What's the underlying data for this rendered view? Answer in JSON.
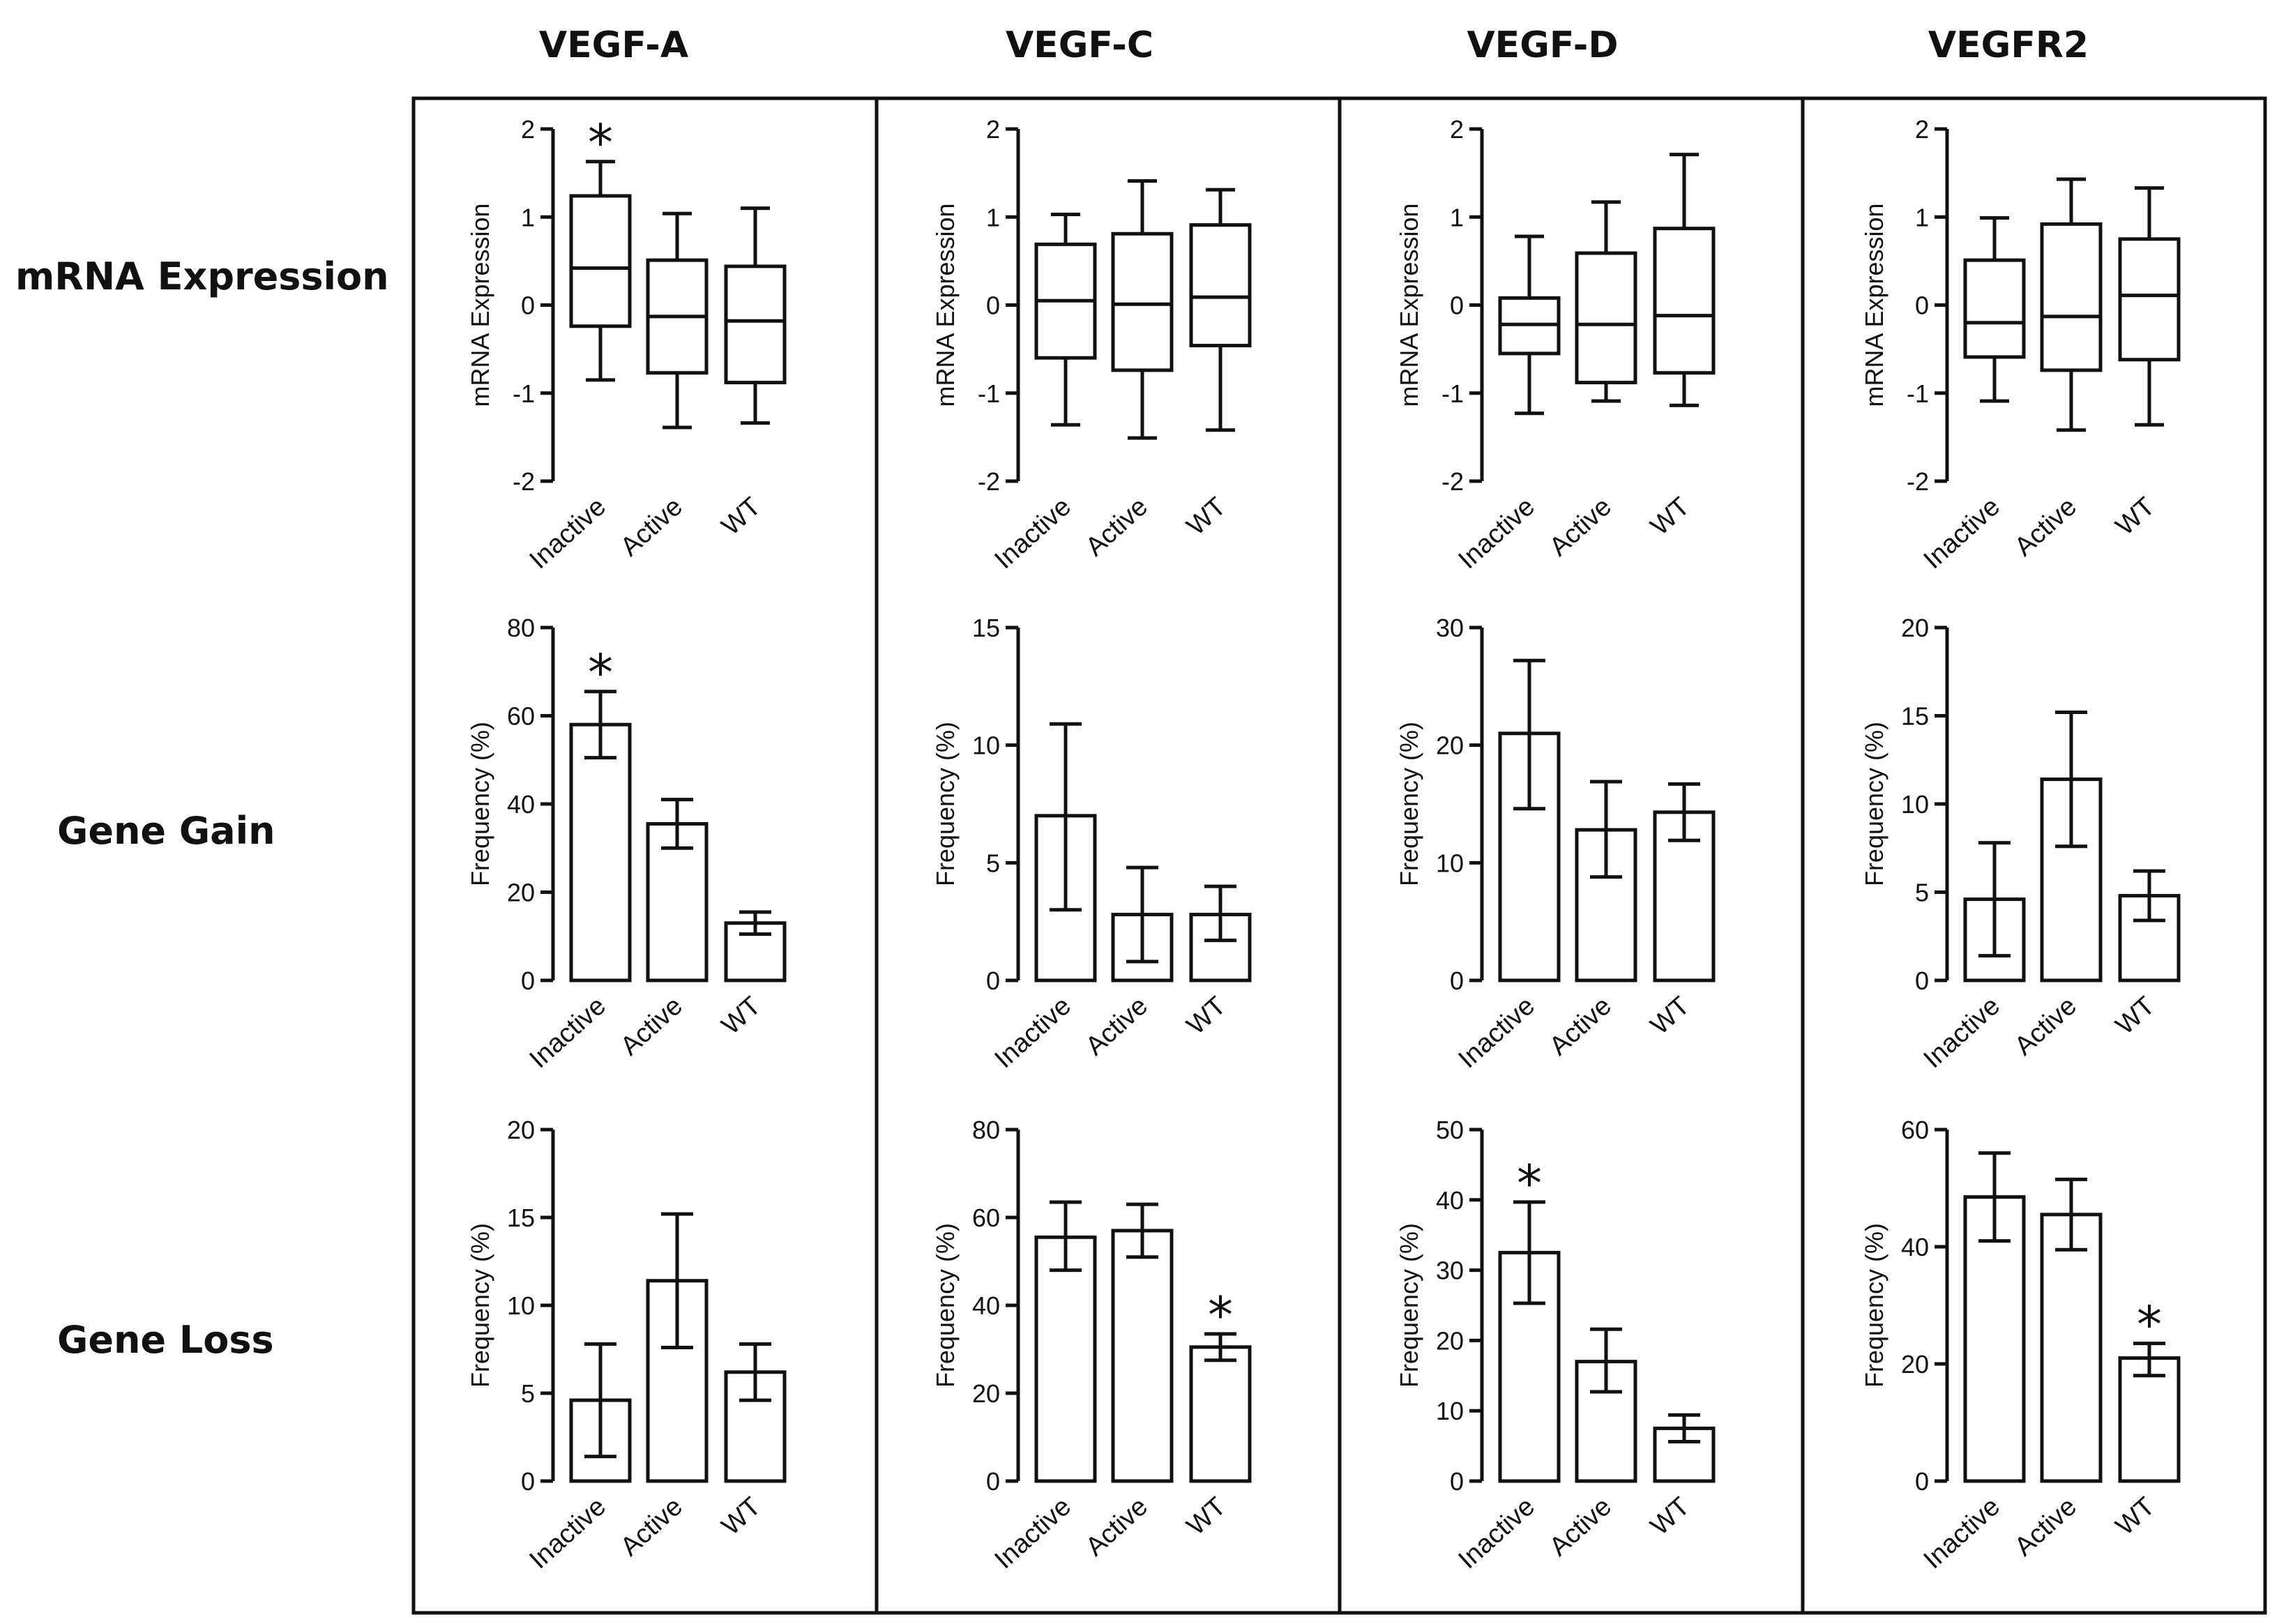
{
  "columns": [
    "VEGF-A",
    "VEGF-C",
    "VEGF-D",
    "VEGFR2"
  ],
  "rows": [
    "mRNA Expression",
    "Gene Gain",
    "Gene Loss"
  ],
  "chart_data": [
    {
      "type": "box",
      "gene": "VEGF-A",
      "row": "mRNA Expression",
      "categories": [
        "Inactive",
        "Active",
        "WT"
      ],
      "ylabel": "mRNA Expression",
      "ylim": [
        -2,
        2
      ],
      "yticks": [
        -2,
        -1,
        0,
        1,
        2
      ],
      "boxes": [
        {
          "min": -0.85,
          "q1": -0.24,
          "median": 0.42,
          "q3": 1.24,
          "max": 1.63
        },
        {
          "min": -1.39,
          "q1": -0.77,
          "median": -0.13,
          "q3": 0.51,
          "max": 1.04
        },
        {
          "min": -1.34,
          "q1": -0.88,
          "median": -0.18,
          "q3": 0.44,
          "max": 1.1
        }
      ],
      "significant": [
        true,
        false,
        false
      ],
      "sig_symbol": "*"
    },
    {
      "type": "box",
      "gene": "VEGF-C",
      "row": "mRNA Expression",
      "categories": [
        "Inactive",
        "Active",
        "WT"
      ],
      "ylabel": "mRNA Expression",
      "ylim": [
        -2,
        2
      ],
      "yticks": [
        -2,
        -1,
        0,
        1,
        2
      ],
      "boxes": [
        {
          "min": -1.36,
          "q1": -0.6,
          "median": 0.05,
          "q3": 0.69,
          "max": 1.03
        },
        {
          "min": -1.51,
          "q1": -0.74,
          "median": 0.01,
          "q3": 0.81,
          "max": 1.41
        },
        {
          "min": -1.42,
          "q1": -0.46,
          "median": 0.09,
          "q3": 0.91,
          "max": 1.31
        }
      ],
      "significant": [
        false,
        false,
        false
      ],
      "sig_symbol": "*"
    },
    {
      "type": "box",
      "gene": "VEGF-D",
      "row": "mRNA Expression",
      "categories": [
        "Inactive",
        "Active",
        "WT"
      ],
      "ylabel": "mRNA Expression",
      "ylim": [
        -2,
        2
      ],
      "yticks": [
        -2,
        -1,
        0,
        1,
        2
      ],
      "boxes": [
        {
          "min": -1.23,
          "q1": -0.55,
          "median": -0.22,
          "q3": 0.08,
          "max": 0.78
        },
        {
          "min": -1.09,
          "q1": -0.88,
          "median": -0.22,
          "q3": 0.59,
          "max": 1.17
        },
        {
          "min": -1.14,
          "q1": -0.77,
          "median": -0.12,
          "q3": 0.87,
          "max": 1.71
        }
      ],
      "significant": [
        false,
        false,
        false
      ],
      "sig_symbol": "*"
    },
    {
      "type": "box",
      "gene": "VEGFR2",
      "row": "mRNA Expression",
      "categories": [
        "Inactive",
        "Active",
        "WT"
      ],
      "ylabel": "mRNA Expression",
      "ylim": [
        -2,
        2
      ],
      "yticks": [
        -2,
        -1,
        0,
        1,
        2
      ],
      "boxes": [
        {
          "min": -1.09,
          "q1": -0.59,
          "median": -0.2,
          "q3": 0.51,
          "max": 0.99
        },
        {
          "min": -1.42,
          "q1": -0.74,
          "median": -0.13,
          "q3": 0.92,
          "max": 1.43
        },
        {
          "min": -1.36,
          "q1": -0.62,
          "median": 0.11,
          "q3": 0.75,
          "max": 1.33
        }
      ],
      "significant": [
        false,
        false,
        false
      ],
      "sig_symbol": "*"
    },
    {
      "type": "bar",
      "gene": "VEGF-A",
      "row": "Gene Gain",
      "categories": [
        "Inactive",
        "Active",
        "WT"
      ],
      "ylabel": "Frequency (%)",
      "ylim": [
        0,
        80
      ],
      "yticks": [
        0,
        20,
        40,
        60,
        80
      ],
      "values": [
        58,
        35.5,
        13
      ],
      "err_low": [
        50.5,
        30,
        10.5
      ],
      "err_high": [
        65.5,
        41,
        15.5
      ],
      "significant": [
        true,
        false,
        false
      ],
      "sig_symbol": "*"
    },
    {
      "type": "bar",
      "gene": "VEGF-C",
      "row": "Gene Gain",
      "categories": [
        "Inactive",
        "Active",
        "WT"
      ],
      "ylabel": "Frequency (%)",
      "ylim": [
        0,
        15
      ],
      "yticks": [
        0,
        5,
        10,
        15
      ],
      "values": [
        7,
        2.8,
        2.8
      ],
      "err_low": [
        3,
        0.8,
        1.7
      ],
      "err_high": [
        10.9,
        4.8,
        4
      ],
      "significant": [
        false,
        false,
        false
      ],
      "sig_symbol": "*"
    },
    {
      "type": "bar",
      "gene": "VEGF-D",
      "row": "Gene Gain",
      "categories": [
        "Inactive",
        "Active",
        "WT"
      ],
      "ylabel": "Frequency (%)",
      "ylim": [
        0,
        30
      ],
      "yticks": [
        0,
        10,
        20,
        30
      ],
      "values": [
        21,
        12.8,
        14.3
      ],
      "err_low": [
        14.6,
        8.8,
        11.9
      ],
      "err_high": [
        27.2,
        16.9,
        16.7
      ],
      "significant": [
        false,
        false,
        false
      ],
      "sig_symbol": "*"
    },
    {
      "type": "bar",
      "gene": "VEGFR2",
      "row": "Gene Gain",
      "categories": [
        "Inactive",
        "Active",
        "WT"
      ],
      "ylabel": "Frequency (%)",
      "ylim": [
        0,
        20
      ],
      "yticks": [
        0,
        5,
        10,
        15,
        20
      ],
      "values": [
        4.6,
        11.4,
        4.8
      ],
      "err_low": [
        1.4,
        7.6,
        3.4
      ],
      "err_high": [
        7.8,
        15.2,
        6.2
      ],
      "significant": [
        false,
        false,
        false
      ],
      "sig_symbol": "*"
    },
    {
      "type": "bar",
      "gene": "VEGF-A",
      "row": "Gene Loss",
      "categories": [
        "Inactive",
        "Active",
        "WT"
      ],
      "ylabel": "Frequency (%)",
      "ylim": [
        0,
        20
      ],
      "yticks": [
        0,
        5,
        10,
        15,
        20
      ],
      "values": [
        4.6,
        11.4,
        6.2
      ],
      "err_low": [
        1.4,
        7.6,
        4.6
      ],
      "err_high": [
        7.8,
        15.2,
        7.8
      ],
      "significant": [
        false,
        false,
        false
      ],
      "sig_symbol": "*"
    },
    {
      "type": "bar",
      "gene": "VEGF-C",
      "row": "Gene Loss",
      "categories": [
        "Inactive",
        "Active",
        "WT"
      ],
      "ylabel": "Frequency (%)",
      "ylim": [
        0,
        80
      ],
      "yticks": [
        0,
        20,
        40,
        60,
        80
      ],
      "values": [
        55.5,
        57,
        30.5
      ],
      "err_low": [
        48,
        51,
        27.5
      ],
      "err_high": [
        63.5,
        63,
        33.5
      ],
      "significant": [
        false,
        false,
        true
      ],
      "sig_symbol": "*"
    },
    {
      "type": "bar",
      "gene": "VEGF-D",
      "row": "Gene Loss",
      "categories": [
        "Inactive",
        "Active",
        "WT"
      ],
      "ylabel": "Frequency (%)",
      "ylim": [
        0,
        50
      ],
      "yticks": [
        0,
        10,
        20,
        30,
        40,
        50
      ],
      "values": [
        32.5,
        17,
        7.5
      ],
      "err_low": [
        25.3,
        12.7,
        5.6
      ],
      "err_high": [
        39.7,
        21.6,
        9.4
      ],
      "significant": [
        true,
        false,
        false
      ],
      "sig_symbol": "*"
    },
    {
      "type": "bar",
      "gene": "VEGFR2",
      "row": "Gene Loss",
      "categories": [
        "Inactive",
        "Active",
        "WT"
      ],
      "ylabel": "Frequency (%)",
      "ylim": [
        0,
        60
      ],
      "yticks": [
        0,
        20,
        40,
        60
      ],
      "values": [
        48.5,
        45.5,
        21
      ],
      "err_low": [
        41,
        39.5,
        18
      ],
      "err_high": [
        56,
        51.5,
        23.5
      ],
      "significant": [
        false,
        false,
        true
      ],
      "sig_symbol": "*"
    }
  ]
}
